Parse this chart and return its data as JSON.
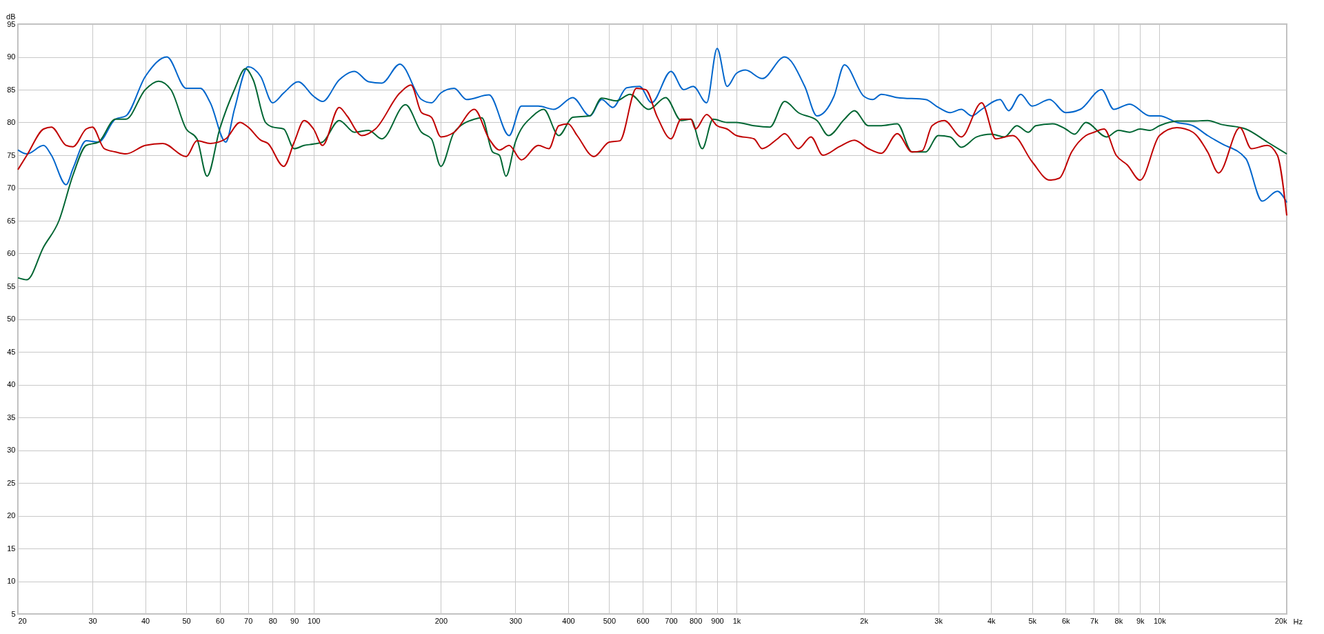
{
  "chart_data": {
    "type": "line",
    "ylabel": "dB",
    "xlim": [
      20,
      20000
    ],
    "ylim": [
      5,
      95
    ],
    "log": "x",
    "grid": true,
    "line_style": "solid",
    "marker": "none",
    "xticks": [
      20,
      30,
      40,
      50,
      60,
      70,
      80,
      90,
      100,
      200,
      300,
      400,
      500,
      600,
      700,
      800,
      900,
      {
        "value": 1000,
        "label": "1k"
      },
      {
        "value": 2000,
        "label": "2k"
      },
      {
        "value": 3000,
        "label": "3k"
      },
      {
        "value": 4000,
        "label": "4k"
      },
      {
        "value": 5000,
        "label": "5k"
      },
      {
        "value": 6000,
        "label": "6k"
      },
      {
        "value": 7000,
        "label": "7k"
      },
      {
        "value": 8000,
        "label": "8k"
      },
      {
        "value": 9000,
        "label": "9k"
      },
      {
        "value": 10000,
        "label": "10k"
      },
      {
        "value": 20000,
        "label": "20k"
      }
    ],
    "xlabel": "Hz",
    "yticks": [
      5,
      10,
      15,
      20,
      25,
      30,
      35,
      40,
      45,
      50,
      55,
      60,
      65,
      70,
      75,
      80,
      85,
      90,
      95
    ],
    "series": [
      {
        "color": "#0066cc",
        "x": [
          20,
          21,
          23,
          24,
          26,
          27,
          29,
          31,
          34,
          36,
          40,
          45,
          50,
          54,
          57,
          62,
          65,
          70,
          75,
          80,
          85,
          92,
          100,
          105,
          115,
          125,
          135,
          145,
          160,
          180,
          190,
          200,
          215,
          230,
          260,
          290,
          310,
          340,
          370,
          410,
          450,
          480,
          510,
          550,
          590,
          630,
          700,
          750,
          790,
          850,
          900,
          950,
          1000,
          1050,
          1150,
          1300,
          1450,
          1550,
          1700,
          1800,
          2000,
          2100,
          2200,
          2400,
          2800,
          3000,
          3200,
          3400,
          3600,
          3800,
          4200,
          4400,
          4700,
          5000,
          5500,
          6000,
          6500,
          7300,
          7800,
          8500,
          9500,
          10000,
          11000,
          12000,
          13000,
          14000,
          16000,
          17500,
          19000,
          20000
        ],
        "values": [
          75.8,
          75.2,
          76.5,
          75,
          70.5,
          73,
          77.2,
          77,
          80.5,
          81,
          87,
          90,
          85.2,
          85.2,
          83,
          77,
          82,
          88.5,
          87,
          83,
          84.5,
          86.2,
          84,
          83.2,
          86.5,
          87.8,
          86.2,
          86,
          88.9,
          83.5,
          83,
          84.5,
          85.2,
          83.5,
          84.2,
          78,
          82.5,
          82.5,
          82,
          83.8,
          81,
          83.5,
          82.3,
          85.3,
          85.5,
          83,
          87.8,
          85,
          85.5,
          83,
          91.3,
          85.5,
          87.5,
          88,
          86.7,
          90,
          85.5,
          81,
          84,
          88.8,
          84,
          83.5,
          84.3,
          83.8,
          83.5,
          82.3,
          81.5,
          82,
          81,
          82,
          83.5,
          81.8,
          84.3,
          82.5,
          83.5,
          81.5,
          82,
          85,
          82,
          82.8,
          81,
          81,
          80,
          79.5,
          78,
          76.8,
          74.5,
          68,
          69.5,
          67.8
        ]
      },
      {
        "color": "#006633",
        "x": [
          20,
          21,
          23,
          25,
          27,
          29,
          31,
          34,
          36,
          40,
          43,
          46,
          50,
          53,
          56,
          60,
          65,
          69,
          72,
          77,
          80,
          85,
          90,
          95,
          100,
          105,
          115,
          125,
          135,
          145,
          165,
          180,
          190,
          200,
          215,
          240,
          250,
          265,
          275,
          285,
          300,
          330,
          350,
          380,
          410,
          450,
          480,
          520,
          560,
          620,
          680,
          740,
          780,
          830,
          880,
          950,
          1000,
          1100,
          1200,
          1300,
          1400,
          1550,
          1650,
          1800,
          1900,
          2050,
          2200,
          2400,
          2600,
          2800,
          3000,
          3200,
          3400,
          3700,
          4000,
          4300,
          4600,
          4900,
          5100,
          5600,
          6000,
          6300,
          6700,
          7500,
          8000,
          8500,
          9000,
          9500,
          10000,
          11000,
          12000,
          13000,
          14000,
          16000,
          18000,
          20000
        ],
        "values": [
          56.3,
          56,
          61,
          65,
          72,
          76.5,
          77,
          80.5,
          80.5,
          85,
          86.3,
          85,
          79,
          77.5,
          71.8,
          79,
          85,
          88.2,
          86.5,
          80,
          79.3,
          79,
          76,
          76.5,
          76.7,
          77,
          80.3,
          78.5,
          78.8,
          77.5,
          82.7,
          78.5,
          77.5,
          73.3,
          78.5,
          80.5,
          80.7,
          75.5,
          75,
          71.8,
          77,
          81,
          82,
          78,
          80.8,
          81,
          83.7,
          83.3,
          84.3,
          82,
          83.8,
          80.3,
          80.5,
          76,
          80.5,
          80,
          80,
          79.5,
          79.3,
          83.2,
          81.5,
          80.3,
          78,
          80.5,
          81.8,
          79.5,
          79.5,
          79.8,
          75.5,
          75.5,
          78,
          77.8,
          76.2,
          77.8,
          78.2,
          77.8,
          79.5,
          78.5,
          79.5,
          79.8,
          79,
          78.2,
          80,
          77.8,
          78.8,
          78.5,
          79,
          78.8,
          79.5,
          80.2,
          80.2,
          80.3,
          79.7,
          79,
          77,
          75.2
        ]
      },
      {
        "color": "#c00000",
        "x": [
          20,
          21,
          23,
          24,
          26,
          27,
          29,
          30,
          32,
          34,
          36,
          40,
          44,
          50,
          53,
          57,
          62,
          67,
          70,
          75,
          78,
          85,
          90,
          95,
          100,
          105,
          115,
          120,
          130,
          140,
          160,
          170,
          180,
          190,
          200,
          215,
          240,
          260,
          275,
          290,
          310,
          340,
          360,
          380,
          400,
          420,
          460,
          500,
          530,
          580,
          610,
          650,
          700,
          740,
          780,
          800,
          850,
          900,
          950,
          1000,
          1100,
          1150,
          1250,
          1300,
          1400,
          1500,
          1600,
          1750,
          1900,
          2050,
          2200,
          2400,
          2600,
          2750,
          2900,
          3100,
          3400,
          3800,
          4100,
          4500,
          5000,
          5500,
          5800,
          6200,
          6700,
          7000,
          7400,
          7900,
          8400,
          9000,
          10000,
          11000,
          12000,
          13000,
          13800,
          15500,
          16500,
          18000,
          19000,
          20000
        ],
        "values": [
          72.8,
          75,
          79,
          79.3,
          76.5,
          76.3,
          79,
          79.3,
          76,
          75.5,
          75.2,
          76.5,
          76.8,
          74.8,
          77.2,
          76.8,
          77.5,
          80,
          79.3,
          77.3,
          76.8,
          73.3,
          77,
          80.3,
          79,
          76.5,
          82.3,
          81,
          78,
          79,
          84.5,
          85.7,
          81.5,
          80.8,
          77.8,
          78.5,
          82,
          77.5,
          75.8,
          76.5,
          74.3,
          76.5,
          76,
          79.5,
          79.8,
          78,
          74.8,
          77,
          77.2,
          85.2,
          85,
          80.8,
          77.5,
          80.5,
          80.5,
          79,
          81.2,
          79.5,
          79,
          78,
          77.5,
          76,
          77.5,
          78.3,
          76,
          77.8,
          75,
          76.3,
          77.3,
          76,
          75.3,
          78.3,
          75.5,
          75.7,
          79.5,
          80.3,
          77.8,
          83,
          77.5,
          78,
          74,
          71.2,
          71.5,
          75.5,
          78,
          78.5,
          79,
          75,
          73.5,
          71.2,
          78,
          79.2,
          78.5,
          75.5,
          72.3,
          79.2,
          76,
          76.5,
          75,
          65.8
        ]
      }
    ]
  }
}
